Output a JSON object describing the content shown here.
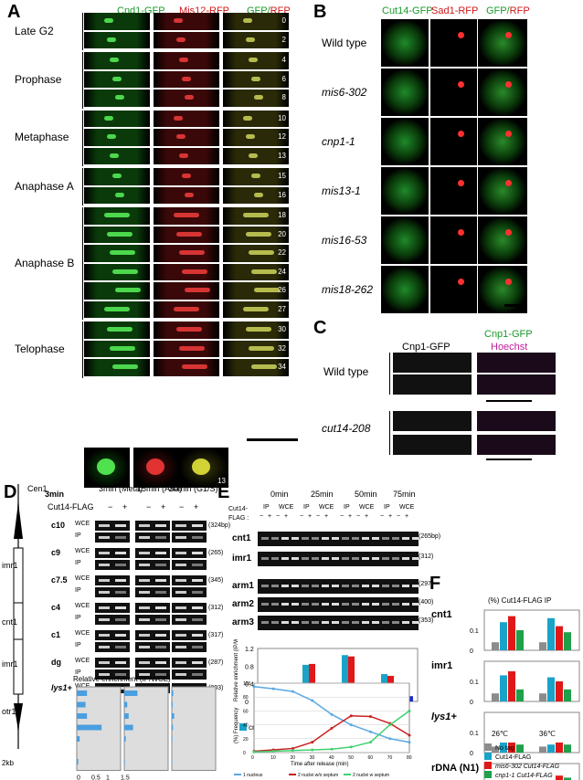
{
  "panelA": {
    "letter": "A",
    "headers": [
      "Cnd1-GFP",
      "Mis12-RFP",
      "GFP/RFP"
    ],
    "header_gfp_prefix": "GFP/",
    "header_rfp_suffix": "RFP",
    "stages": [
      "Late G2",
      "Prophase",
      "Metaphase",
      "Anaphase A",
      "Anaphase B",
      "Telophase"
    ],
    "times": [
      "0",
      "2",
      "4",
      "6",
      "8",
      "10",
      "12",
      "13",
      "15",
      "16",
      "18",
      "20",
      "22",
      "24",
      "26",
      "27",
      "30",
      "32",
      "34"
    ],
    "zoom_time": "13"
  },
  "panelB": {
    "letter": "B",
    "headers": [
      "Cut14-GFP",
      "Sad1-RFP",
      "GFP/RFP"
    ],
    "strains": [
      "Wild type",
      "mis6-302",
      "cnp1-1",
      "mis13-1",
      "mis16-53",
      "mis18-262"
    ]
  },
  "panelC": {
    "letter": "C",
    "headers": [
      "Cnp1-GFP",
      "Cnp1-GFP",
      "Hoechst"
    ],
    "strains": [
      "Wild type",
      "cut14-208"
    ]
  },
  "panelD": {
    "letter": "D",
    "map_labels": [
      "Cen1",
      "imr1",
      "cnt1",
      "imr1",
      "otr1",
      "lys1+",
      "2kb"
    ],
    "timepoints": [
      "3min (Meta)",
      "15min (Ana)",
      "30min (G1/S)"
    ],
    "flag_label": "Cut14-FLAG",
    "minus": "−",
    "plus": "+",
    "loci": [
      "c10",
      "c9",
      "c7.5",
      "c4",
      "c1",
      "dg",
      "lys1+"
    ],
    "row_types": [
      "WCE",
      "IP"
    ],
    "sizes": [
      "(324bp)",
      "(265)",
      "(345)",
      "(312)",
      "(317)",
      "(287)",
      "(203)"
    ],
    "enrichment_title": "Relative enrichment (IP/WCE)",
    "axis_ticks": [
      "0",
      "0.5",
      "1",
      "1.5"
    ],
    "enrichment": [
      {
        "label": "3min",
        "values": [
          0.35,
          0.3,
          0.35,
          0.85,
          0.1,
          0.0,
          0.05
        ]
      },
      {
        "label": "15min",
        "values": [
          0.45,
          0.1,
          0.15,
          0.3,
          0.05,
          0.0,
          0.02
        ]
      },
      {
        "label": "30min",
        "values": [
          0.05,
          0.03,
          0.08,
          0.04,
          0.02,
          0.0,
          0.01
        ]
      }
    ]
  },
  "panelE": {
    "letter": "E",
    "timepoints": [
      "0min",
      "25min",
      "50min",
      "75min"
    ],
    "cut14_label": "Cut14-",
    "flag_label": "FLAG :",
    "ip": "IP",
    "wce": "WCE",
    "loci": [
      "cnt1",
      "imr1",
      "arm1",
      "arm2",
      "arm3"
    ],
    "sizes": [
      "(265bp)",
      "(312)",
      "(297)",
      "(400)",
      "(353)"
    ],
    "chart_data": {
      "type": "bar",
      "ylabel": "Relative enrichment (IP/WCE)",
      "ylim": [
        0,
        1.2
      ],
      "yticks": [
        "0",
        "0.4",
        "0.8",
        "1.2"
      ],
      "categories": [
        "0min",
        "25min",
        "50min",
        "75min"
      ],
      "series": [
        {
          "name": "cnt1",
          "color": "#1aa3c8",
          "values": [
            0.02,
            0.83,
            1.05,
            0.62
          ]
        },
        {
          "name": "imr1",
          "color": "#e01818",
          "values": [
            0.02,
            0.85,
            1.02,
            0.58
          ]
        },
        {
          "name": "arm1",
          "color": "#f2a81c",
          "values": [
            0.0,
            0.22,
            0.32,
            0.18
          ]
        },
        {
          "name": "arm2",
          "color": "#2ecc40",
          "values": [
            0.0,
            0.25,
            0.3,
            0.2
          ]
        },
        {
          "name": "arm3",
          "color": "#1a2ccc",
          "values": [
            0.0,
            0.15,
            0.25,
            0.12
          ]
        }
      ]
    },
    "line_chart": {
      "type": "line",
      "ylabel": "(%) Frequency",
      "xlabel": "Time after release (min)",
      "xticks": [
        0,
        10,
        20,
        30,
        40,
        50,
        60,
        70,
        80
      ],
      "yticks": [
        0,
        20,
        40,
        60,
        80,
        100
      ],
      "series": [
        {
          "name": "1 nucleus",
          "color": "#5aa8e0",
          "x": [
            0,
            10,
            20,
            30,
            40,
            50,
            60,
            70,
            80
          ],
          "y": [
            95,
            92,
            88,
            75,
            55,
            40,
            30,
            20,
            15
          ]
        },
        {
          "name": "2 nuclei w/o septum",
          "color": "#c82020",
          "x": [
            0,
            10,
            20,
            30,
            40,
            50,
            60,
            70,
            80
          ],
          "y": [
            2,
            4,
            6,
            15,
            35,
            53,
            52,
            42,
            25
          ]
        },
        {
          "name": "2 nuclei w septum",
          "color": "#40d070",
          "x": [
            0,
            10,
            20,
            30,
            40,
            50,
            60,
            70,
            80
          ],
          "y": [
            1,
            2,
            3,
            4,
            5,
            8,
            15,
            40,
            60
          ]
        }
      ]
    }
  },
  "panelF": {
    "letter": "F",
    "title": "(%) Cut14-FLAG IP",
    "temps": [
      "26℃",
      "36℃"
    ],
    "legend": [
      "No tag",
      "Cut14-FLAG",
      "mis6-302 Cut14-FLAG",
      "cnp1-1 Cut14-FLAG"
    ],
    "legend_colors": [
      "#8c8c8c",
      "#1aa3c8",
      "#e01818",
      "#1fa04a"
    ],
    "chart_data": {
      "type": "bar",
      "ylim": [
        0,
        0.2
      ],
      "yticks": [
        "0",
        "0.1"
      ],
      "groups": [
        {
          "name": "cnt1",
          "values": [
            [
              0.04,
              0.14,
              0.17,
              0.1
            ],
            [
              0.04,
              0.16,
              0.12,
              0.09
            ]
          ]
        },
        {
          "name": "imr1",
          "values": [
            [
              0.04,
              0.13,
              0.15,
              0.06
            ],
            [
              0.04,
              0.12,
              0.1,
              0.06
            ]
          ]
        },
        {
          "name": "lys1+",
          "values": [
            [
              0.03,
              0.05,
              0.05,
              0.04
            ],
            [
              0.03,
              0.04,
              0.05,
              0.04
            ]
          ]
        },
        {
          "name": "rDNA (N1)",
          "values": [
            [
              0.04,
              0.08,
              0.11,
              0.07
            ],
            [
              0.06,
              0.08,
              0.14,
              0.13
            ]
          ]
        }
      ]
    }
  }
}
